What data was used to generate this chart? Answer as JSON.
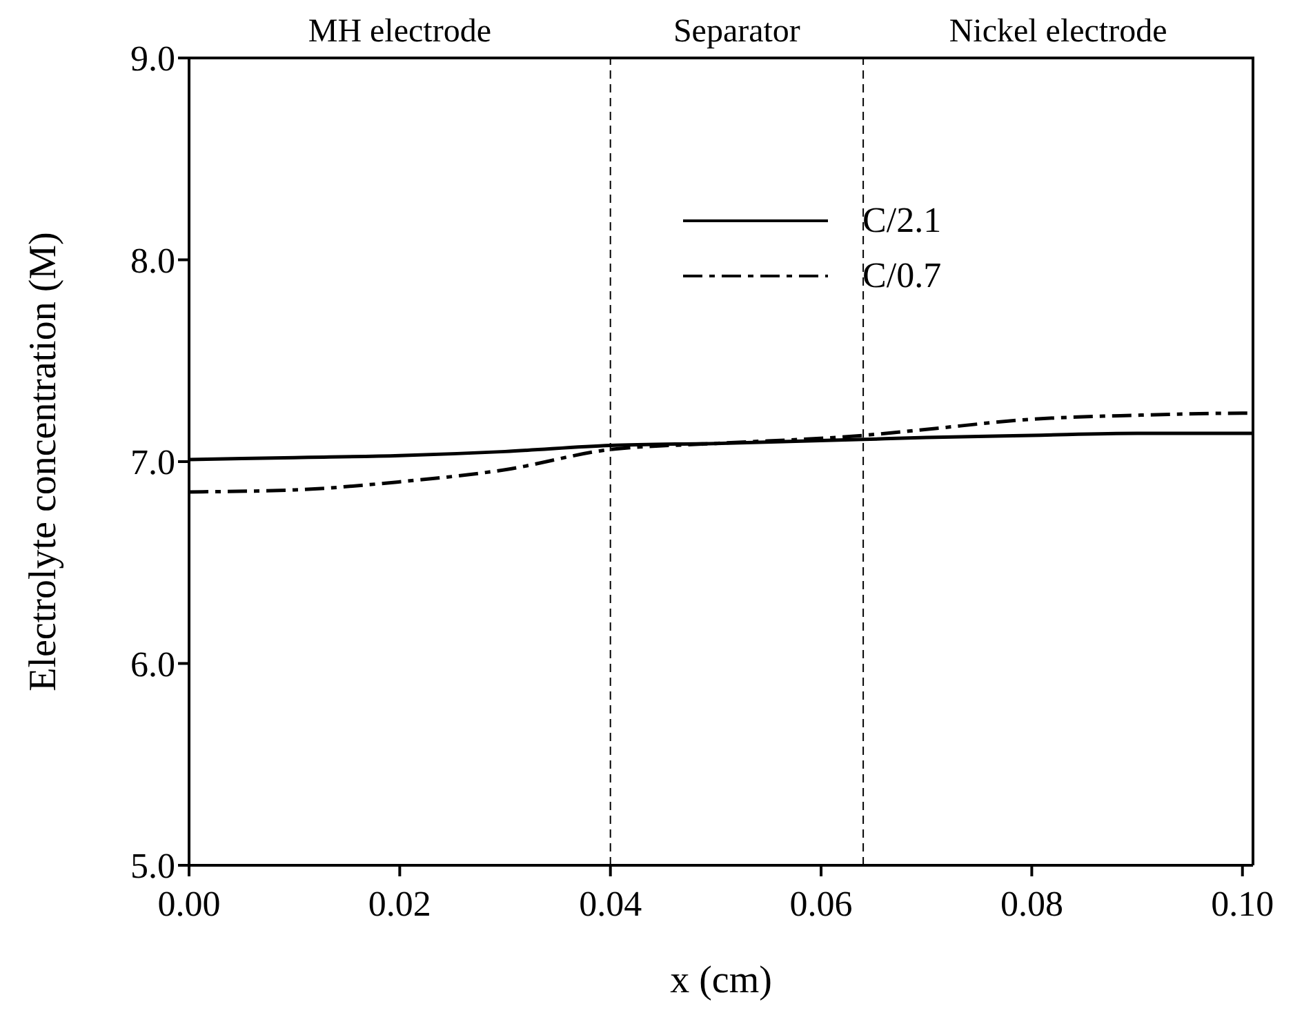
{
  "chart_data": {
    "type": "line",
    "xlabel": "x (cm)",
    "ylabel": "Electrolyte concentration (M)",
    "xlim": [
      0,
      0.101
    ],
    "xticks": [
      {
        "value": 0,
        "label": "0.00"
      },
      {
        "value": 0.02,
        "label": "0.02"
      },
      {
        "value": 0.04,
        "label": "0.04"
      },
      {
        "value": 0.06,
        "label": "0.06"
      },
      {
        "value": 0.08,
        "label": "0.08"
      },
      {
        "value": 0.1,
        "label": "0.10"
      }
    ],
    "ylim": [
      5,
      9
    ],
    "yticks": [
      {
        "value": 5,
        "label": "5.0"
      },
      {
        "value": 6,
        "label": "6.0"
      },
      {
        "value": 7,
        "label": "7.0"
      },
      {
        "value": 8,
        "label": "8.0"
      },
      {
        "value": 9,
        "label": "9.0"
      }
    ],
    "x": [
      0,
      0.01,
      0.02,
      0.03,
      0.04,
      0.05,
      0.064,
      0.07,
      0.08,
      0.09,
      0.1,
      0.101
    ],
    "series": [
      {
        "name": "C/2.1",
        "color": "#000000",
        "line_style": "solid",
        "values": [
          7.01,
          7.02,
          7.03,
          7.05,
          7.08,
          7.09,
          7.11,
          7.12,
          7.13,
          7.14,
          7.14,
          7.14
        ]
      },
      {
        "name": "C/0.7",
        "color": "#000000",
        "line_style": "dashdot",
        "values": [
          6.85,
          6.86,
          6.9,
          6.96,
          7.06,
          7.09,
          7.13,
          7.16,
          7.21,
          7.23,
          7.24,
          7.24
        ]
      }
    ],
    "ref_lines": [
      {
        "axis": "x",
        "value": 0.04,
        "color": "#000000",
        "line_style": "dashed"
      },
      {
        "axis": "x",
        "value": 0.064,
        "color": "#000000",
        "line_style": "dashed"
      }
    ],
    "annotations": [
      "MH electrode",
      "Separator",
      "Nickel electrode"
    ],
    "legend": "top",
    "grid": false,
    "marker": "none"
  }
}
